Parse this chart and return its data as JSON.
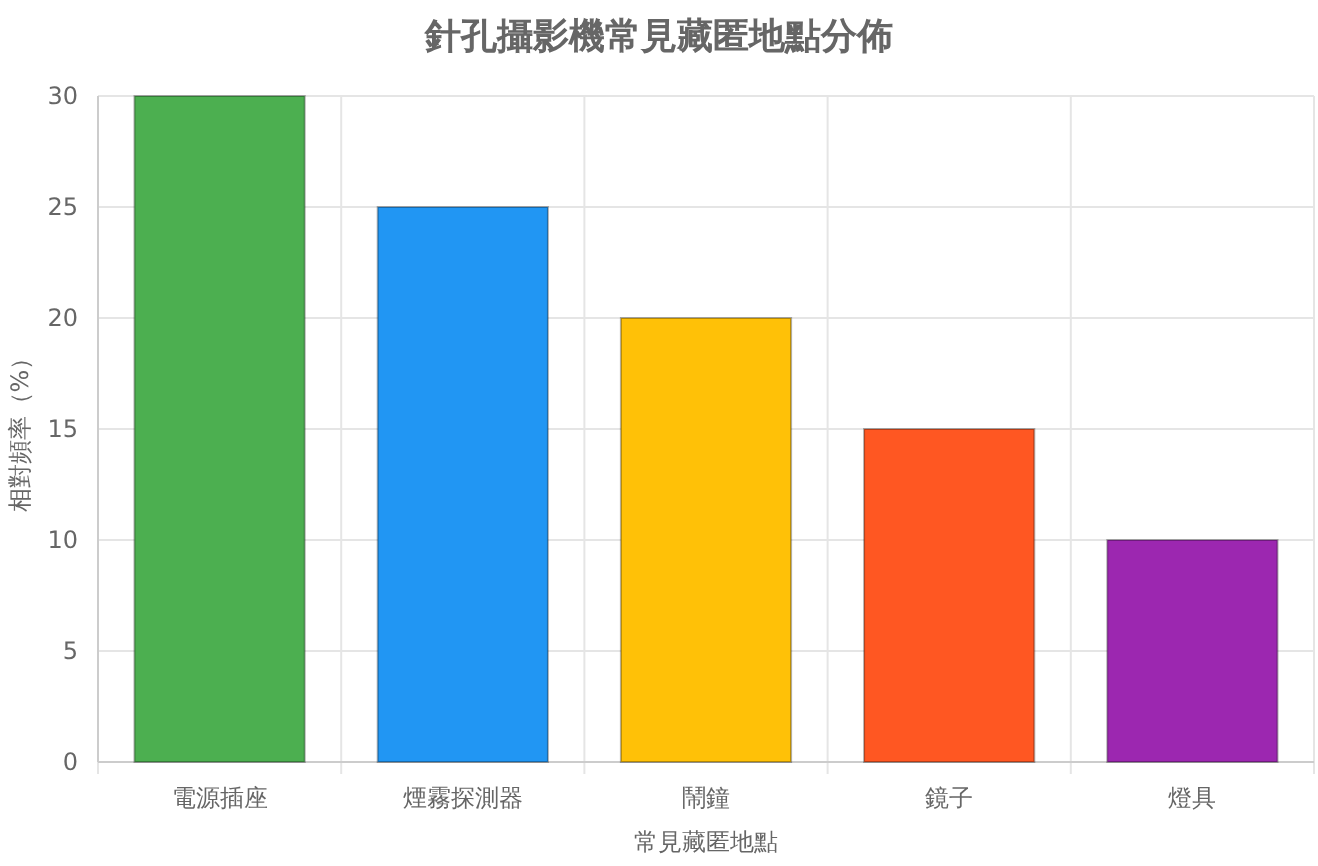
{
  "chart_data": {
    "type": "bar",
    "title": "針孔攝影機常見藏匿地點分佈",
    "xlabel": "常見藏匿地點",
    "ylabel": "相對頻率（%）",
    "categories": [
      "電源插座",
      "煙霧探測器",
      "鬧鐘",
      "鏡子",
      "燈具"
    ],
    "values": [
      30,
      25,
      20,
      15,
      10
    ],
    "colors": [
      "#4caf50",
      "#2196f3",
      "#ffc107",
      "#ff5722",
      "#9c27b0"
    ],
    "ylim": [
      0,
      30
    ],
    "yticks": [
      0,
      5,
      10,
      15,
      20,
      25,
      30
    ],
    "grid": true
  }
}
